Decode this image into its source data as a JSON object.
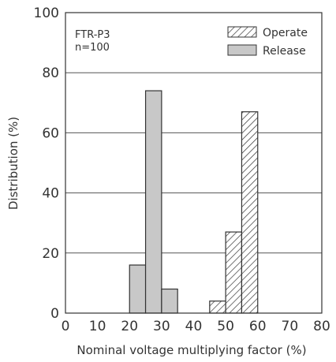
{
  "chart_data": {
    "type": "bar",
    "annotation": {
      "product": "FTR-P3",
      "sample": "n=100"
    },
    "xlabel": "Nominal voltage multiplying factor (%)",
    "ylabel": "Distribution (%)",
    "xlim": [
      0,
      80
    ],
    "ylim": [
      0,
      100
    ],
    "x_ticks": [
      "0",
      "10",
      "20",
      "30",
      "40",
      "50",
      "60",
      "70",
      "80"
    ],
    "y_ticks": [
      "0",
      "20",
      "40",
      "60",
      "80",
      "100"
    ],
    "bin_width": 5,
    "grid": {
      "horizontal": true,
      "vertical": false
    },
    "legend_position": "top-right",
    "series": [
      {
        "name": "Operate",
        "pattern": "hatched",
        "bins": [
          45,
          50,
          55
        ],
        "values": [
          4,
          27,
          67
        ]
      },
      {
        "name": "Release",
        "pattern": "gray",
        "bins": [
          20,
          25,
          30
        ],
        "values": [
          16,
          74,
          8
        ]
      }
    ],
    "colors": {
      "release_fill": "#c8c8c8",
      "stroke": "#333333",
      "grid": "#555555"
    }
  }
}
